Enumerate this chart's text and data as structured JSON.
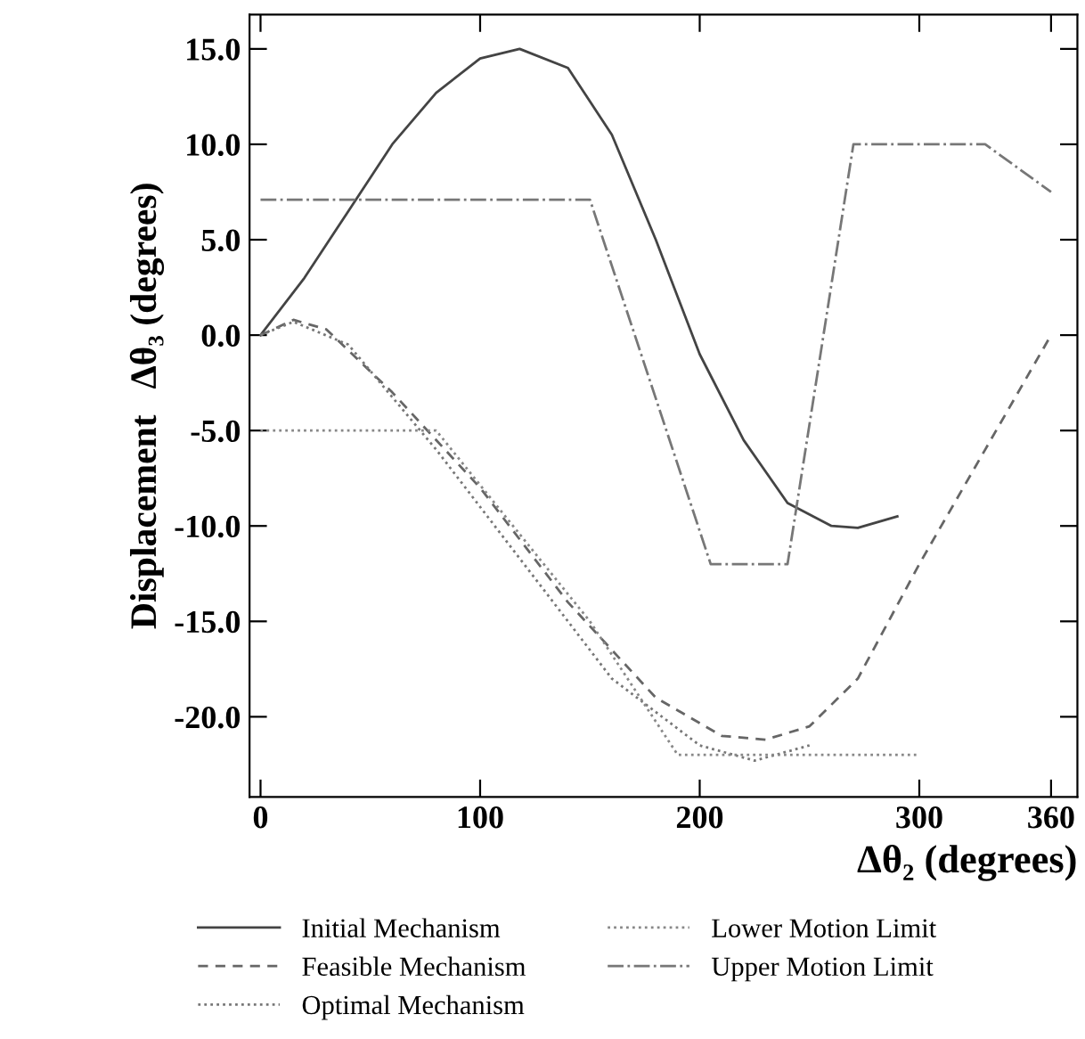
{
  "chart_data": {
    "type": "line",
    "xlabel": "Δθ₂ (degrees)",
    "ylabel": "Displacement   Δθ₃ (degrees)",
    "xlim": [
      -5,
      372
    ],
    "xticks": [
      0,
      100,
      200,
      300,
      360
    ],
    "ylim": [
      -24.2,
      16.8
    ],
    "yticks": [
      {
        "value": 15,
        "label": "15.0"
      },
      {
        "value": 10,
        "label": "10.0"
      },
      {
        "value": 5,
        "label": "5.0"
      },
      {
        "value": 0,
        "label": "0.0"
      },
      {
        "value": -5,
        "label": "-5.0"
      },
      {
        "value": -10,
        "label": "-10.0"
      },
      {
        "value": -15,
        "label": "-15.0"
      },
      {
        "value": -20,
        "label": "-20.0"
      }
    ],
    "grid": false,
    "legend": "bottom",
    "marker": "none",
    "series": [
      {
        "name": "Initial Mechanism",
        "color": "#444444",
        "line_style": "solid",
        "x": [
          0,
          20,
          40,
          60,
          80,
          100,
          118,
          140,
          160,
          180,
          200,
          220,
          240,
          260,
          272,
          290
        ],
        "values": [
          0,
          3,
          6.5,
          10,
          12.7,
          14.5,
          15,
          14,
          10.5,
          5,
          -1,
          -5.5,
          -8.8,
          -10,
          -10.1,
          -9.5
        ]
      },
      {
        "name": "Feasible Mechanism",
        "color": "#666666",
        "line_style": "dashed",
        "x": [
          0,
          15,
          30,
          60,
          100,
          140,
          180,
          210,
          230,
          250,
          272,
          300,
          330,
          360
        ],
        "values": [
          0,
          0.8,
          0.3,
          -3,
          -8,
          -14,
          -19,
          -21,
          -21.2,
          -20.5,
          -18,
          -12,
          -6,
          0
        ]
      },
      {
        "name": "Optimal Mechanism",
        "color": "#777777",
        "line_style": "dotted",
        "x": [
          0,
          15,
          40,
          80,
          120,
          160,
          200,
          225,
          250
        ],
        "values": [
          0,
          0.7,
          -0.5,
          -6,
          -12,
          -18,
          -21.5,
          -22.3,
          -21.5
        ]
      },
      {
        "name": "Lower Motion Limit",
        "color": "#888888",
        "line_style": "dotted",
        "x": [
          0,
          80,
          150,
          190,
          300
        ],
        "values": [
          -5,
          -5,
          -15,
          -22,
          -22
        ]
      },
      {
        "name": "Upper Motion Limit",
        "color": "#777777",
        "line_style": "dashdot",
        "x": [
          0,
          150,
          205,
          240,
          270,
          330,
          360
        ],
        "values": [
          7.1,
          7.1,
          -12,
          -12,
          10,
          10,
          7.5
        ]
      }
    ]
  }
}
